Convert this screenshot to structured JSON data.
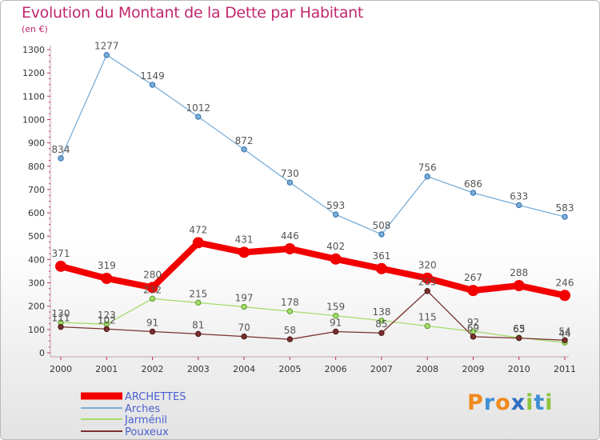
{
  "header": {
    "title": "Evolution du Montant de la Dette par Habitant",
    "subtitle": "(en €)"
  },
  "logo": {
    "text": "Proxiti",
    "letters": [
      {
        "char": "P",
        "color": "#f08a1c"
      },
      {
        "char": "r",
        "color": "#3f8fd6"
      },
      {
        "char": "o",
        "color": "#f08a1c"
      },
      {
        "char": "x",
        "color": "#2f6fc0"
      },
      {
        "char": "i",
        "color": "#8cc43c"
      },
      {
        "char": "t",
        "color": "#3f8fd6"
      },
      {
        "char": "i",
        "color": "#8cc43c"
      }
    ]
  },
  "chart_data": {
    "type": "line",
    "title": "Evolution du Montant de la Dette par Habitant",
    "subtitle": "(en €)",
    "x": [
      "2000",
      "2001",
      "2002",
      "2003",
      "2004",
      "2005",
      "2006",
      "2007",
      "2008",
      "2009",
      "2010",
      "2011"
    ],
    "ylim": [
      0,
      1300
    ],
    "yticks": [
      0,
      100,
      200,
      300,
      400,
      500,
      600,
      700,
      800,
      900,
      1000,
      1100,
      1200,
      1300
    ],
    "grid": false,
    "legend": "bottom-left",
    "series": [
      {
        "name": "ARCHETTES",
        "color": "#f20000",
        "labelColor": "#555555",
        "width": 8,
        "marker": 7,
        "markerStroke": "#f20000",
        "values": [
          371,
          319,
          280,
          472,
          431,
          446,
          402,
          361,
          320,
          267,
          288,
          246
        ]
      },
      {
        "name": "Arches",
        "color": "#7aaed8",
        "labelColor": "#555555",
        "width": 1.3,
        "marker": 3.2,
        "markerStroke": "#2f6fb0",
        "values": [
          834,
          1277,
          1149,
          1012,
          872,
          730,
          593,
          508,
          756,
          686,
          633,
          583
        ]
      },
      {
        "name": "Jarménil",
        "color": "#a5dc6e",
        "labelColor": "#555555",
        "width": 1.3,
        "marker": 3.2,
        "markerStroke": "#5c9a26",
        "values": [
          130,
          123,
          232,
          215,
          197,
          178,
          159,
          138,
          115,
          92,
          65,
          44
        ]
      },
      {
        "name": "Pouxeux",
        "color": "#7a3030",
        "labelColor": "#555555",
        "width": 1.3,
        "marker": 3.2,
        "markerStroke": "#4a1515",
        "values": [
          111,
          102,
          91,
          81,
          70,
          58,
          91,
          85,
          265,
          69,
          63,
          54
        ]
      }
    ],
    "dataLabels": [
      {
        "series": 1,
        "text": [
          "834",
          "1277",
          "1149",
          "1012",
          "872",
          "730",
          "593",
          "508",
          "756",
          "686",
          "633",
          "583"
        ]
      },
      {
        "series": 0,
        "text": [
          "371",
          "319",
          "280",
          "472",
          "431",
          "446",
          "402",
          "361",
          "320",
          "267",
          "288",
          "246"
        ]
      },
      {
        "series": 2,
        "text": [
          "130",
          "123",
          "232",
          "215",
          "197",
          "178",
          "159",
          "138",
          "115",
          "92",
          "65",
          "44"
        ]
      },
      {
        "series": 3,
        "text": [
          "111",
          "102",
          "91",
          "81",
          "70",
          "58",
          "91",
          "85",
          "265",
          "69",
          "63",
          "54"
        ]
      }
    ]
  }
}
